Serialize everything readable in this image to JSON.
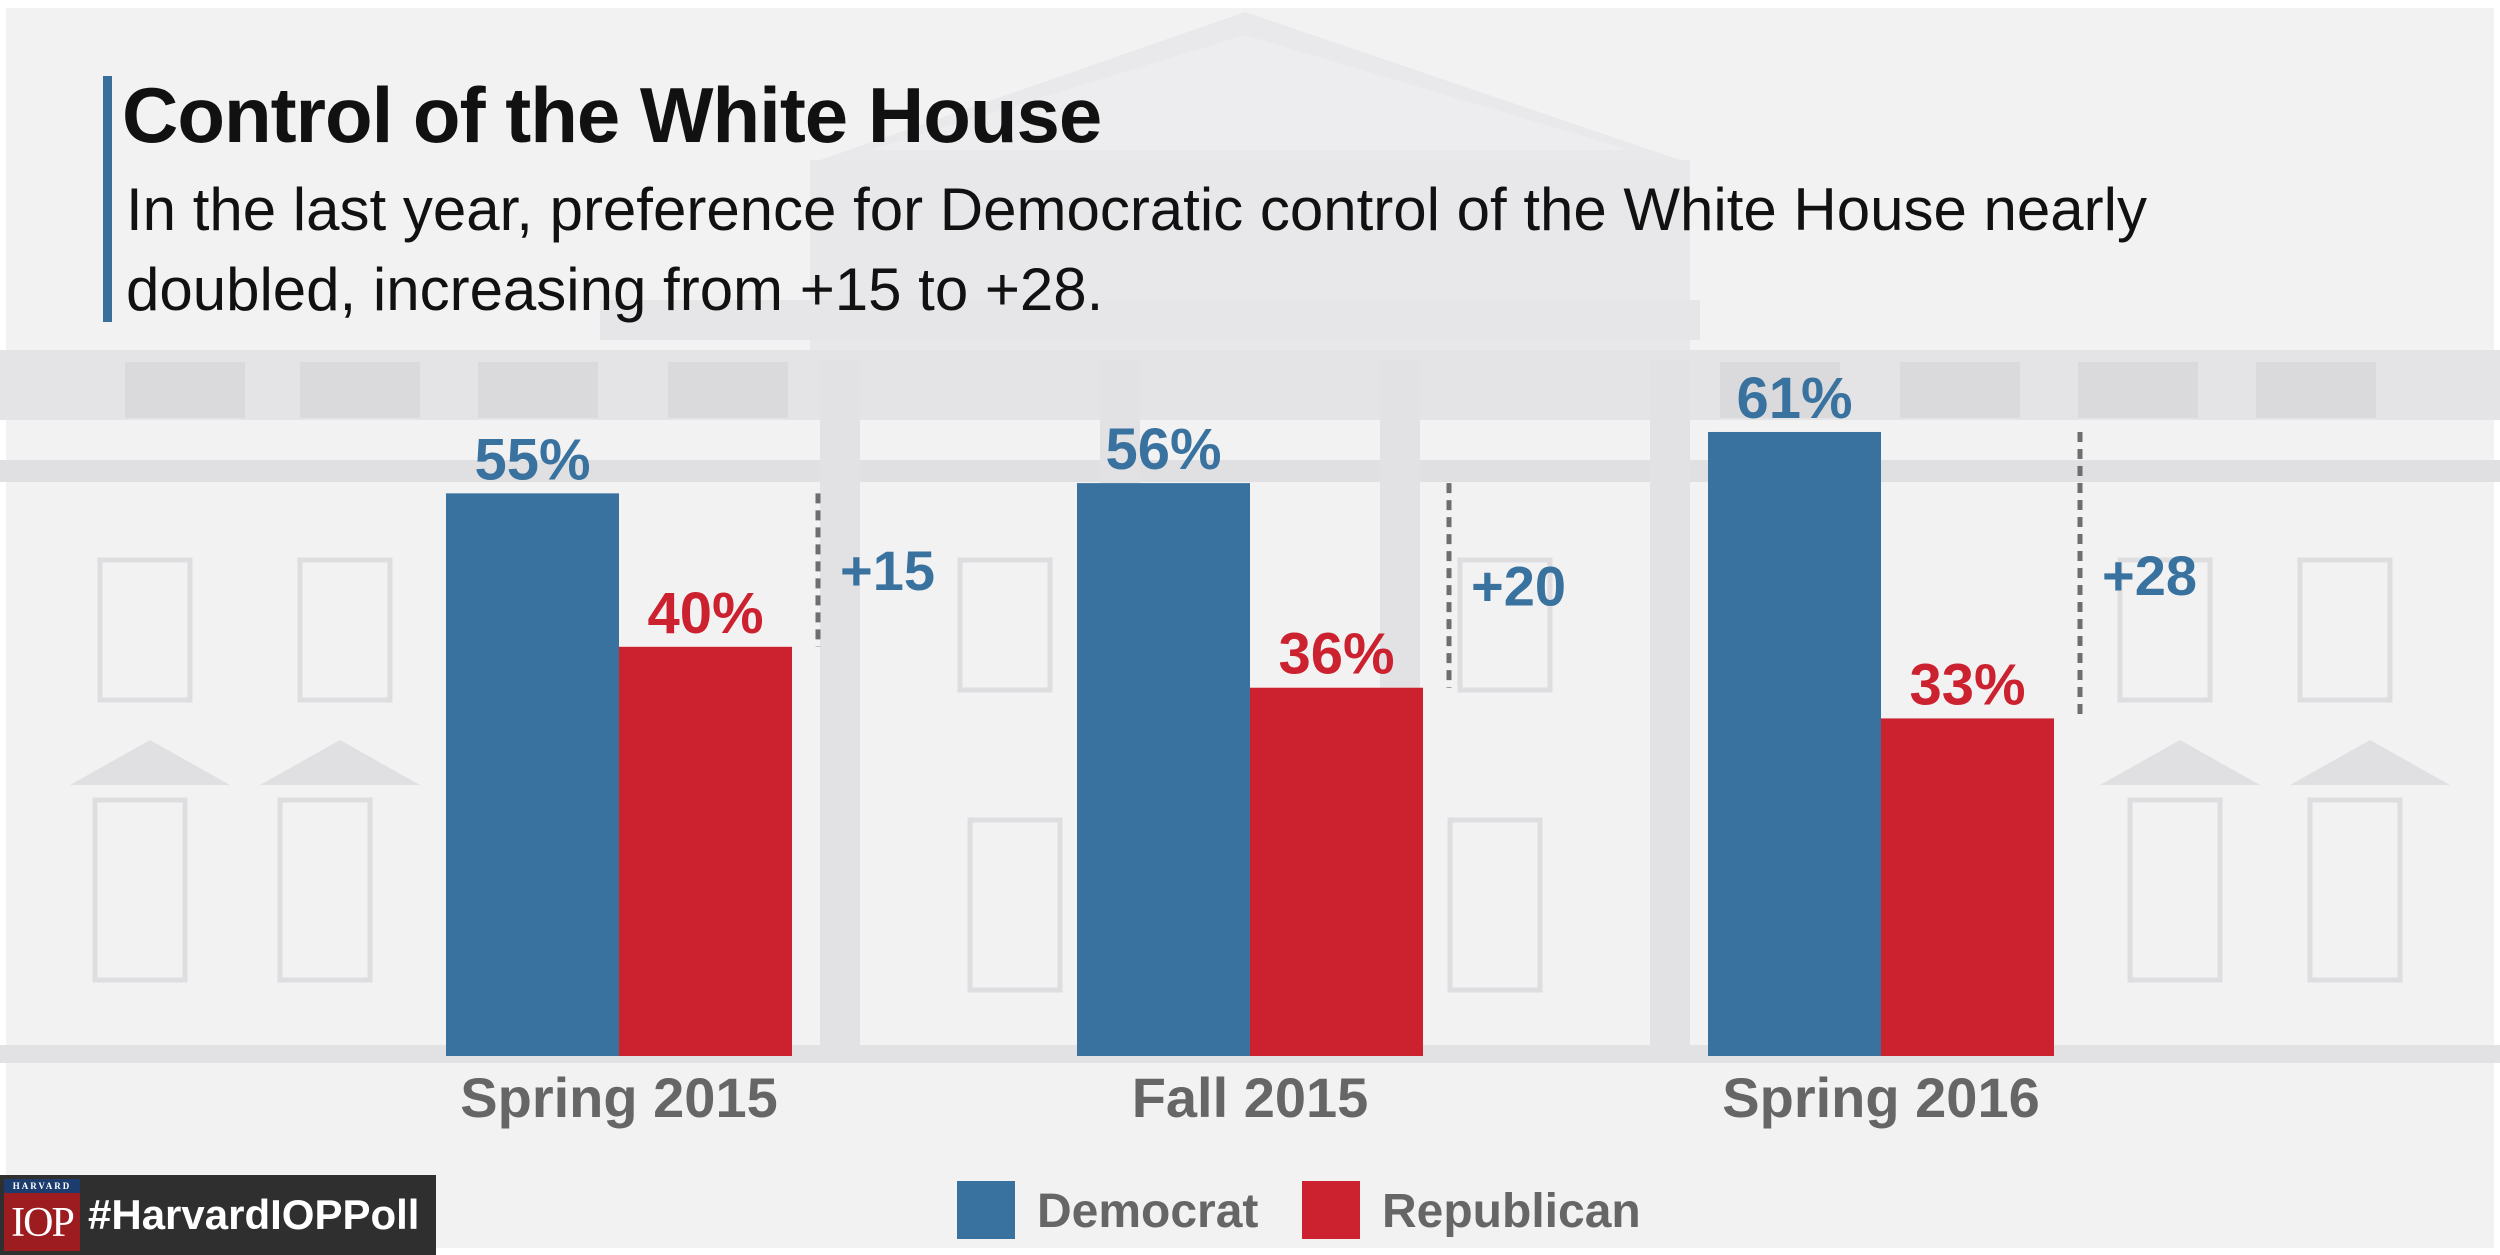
{
  "header": {
    "title": "Control of the White House",
    "subtitle": "In the last year, preference for Democratic control of the White House nearly doubled, increasing from +15 to +28."
  },
  "branding": {
    "logo_top": "HARVARD",
    "logo_text": "IOP",
    "hashtag": "#HarvardIOPPoll"
  },
  "colors": {
    "democrat": "#3a729f",
    "republican": "#cc2230",
    "axis_label": "#666666",
    "accent_bar": "#3a6f9c"
  },
  "chart_data": {
    "type": "bar",
    "title": "Control of the White House",
    "categories": [
      "Spring 2015",
      "Fall 2015",
      "Spring 2016"
    ],
    "series": [
      {
        "name": "Democrat",
        "values": [
          55,
          56,
          61
        ],
        "labels": [
          "55%",
          "56%",
          "61%"
        ]
      },
      {
        "name": "Republican",
        "values": [
          40,
          36,
          33
        ],
        "labels": [
          "40%",
          "36%",
          "33%"
        ]
      }
    ],
    "margins": [
      "+15",
      "+20",
      "+28"
    ],
    "ylim": [
      0,
      100
    ],
    "grid": false,
    "legend_position": "bottom-center"
  }
}
